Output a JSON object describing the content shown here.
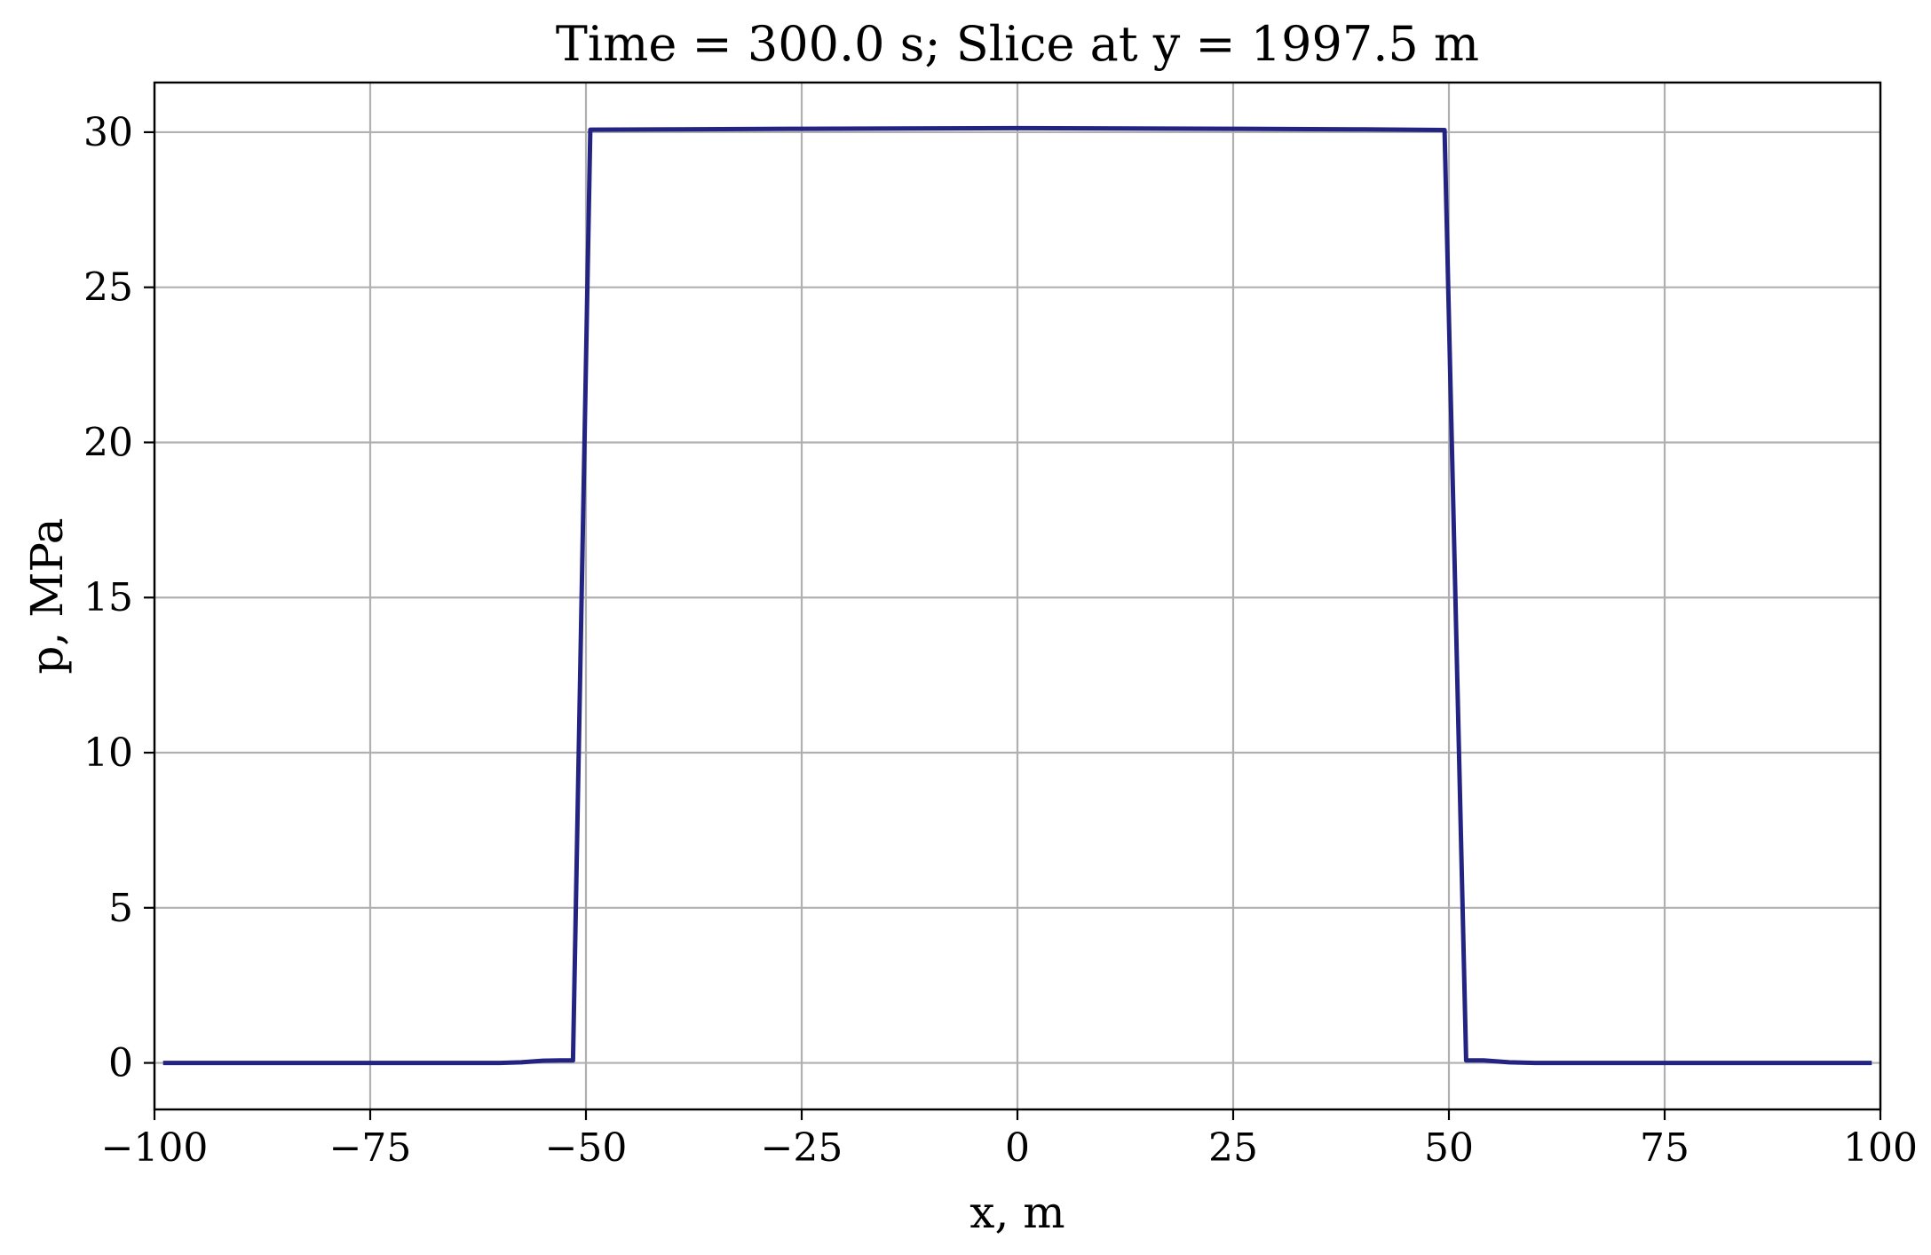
{
  "chart_data": {
    "type": "line",
    "title": "Time = 300.0 s;   Slice at y = 1997.5 m",
    "xlabel": "x, m",
    "ylabel": "p, MPa",
    "xlim": [
      -100,
      100
    ],
    "ylim": [
      -1.5,
      31.6
    ],
    "x_ticks": [
      -100,
      -75,
      -50,
      -25,
      0,
      25,
      50,
      75,
      100
    ],
    "x_tick_labels": [
      "−100",
      "−75",
      "−50",
      "−25",
      "0",
      "25",
      "50",
      "75",
      "100"
    ],
    "y_ticks": [
      0,
      5,
      10,
      15,
      20,
      25,
      30
    ],
    "y_tick_labels": [
      "0",
      "5",
      "10",
      "15",
      "20",
      "25",
      "30"
    ],
    "grid": true,
    "series": [
      {
        "color": "#232382",
        "x": [
          -99,
          -60,
          -57.5,
          -55,
          -53,
          -51.5,
          -49.5,
          -40,
          -25,
          0,
          25,
          40,
          49.5,
          52,
          54,
          57,
          60,
          99
        ],
        "y": [
          0,
          0,
          0.02,
          0.07,
          0.08,
          0.08,
          30.08,
          30.09,
          30.11,
          30.13,
          30.11,
          30.09,
          30.07,
          0.08,
          0.08,
          0.02,
          0,
          0
        ]
      }
    ]
  }
}
